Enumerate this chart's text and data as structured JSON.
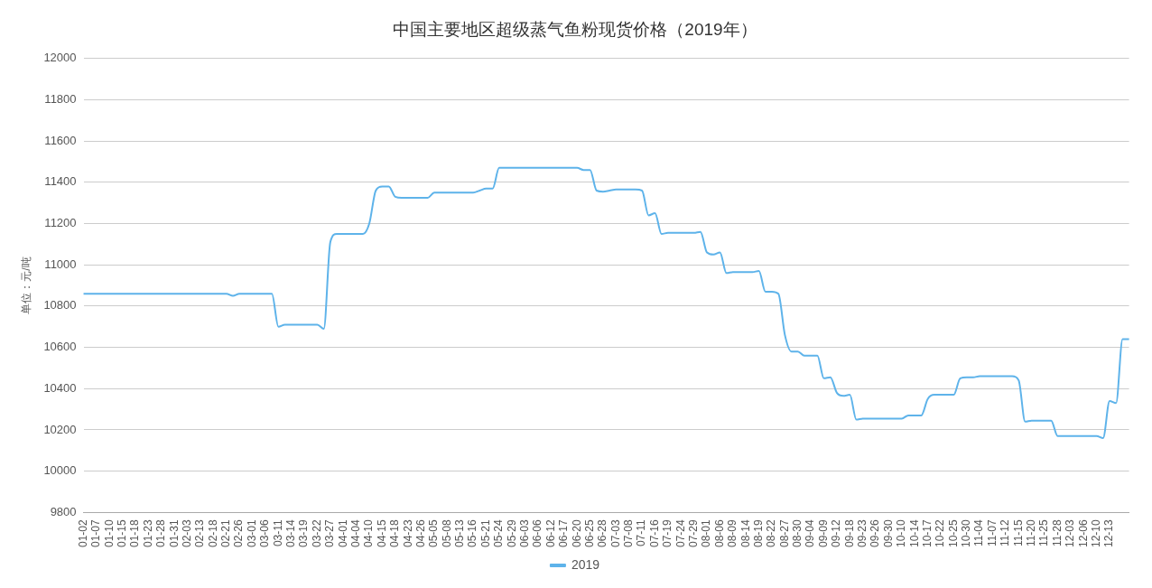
{
  "chart_data": {
    "type": "line",
    "title": "中国主要地区超级蒸气鱼粉现货价格（2019年）",
    "ylabel": "单位：元/吨",
    "categories": [
      "01-02",
      null,
      "01-07",
      null,
      "01-10",
      null,
      "01-15",
      null,
      "01-18",
      null,
      "01-23",
      null,
      "01-28",
      null,
      "01-31",
      null,
      "02-03",
      null,
      "02-13",
      null,
      "02-18",
      null,
      "02-21",
      null,
      "02-26",
      null,
      "03-01",
      null,
      "03-06",
      null,
      "03-11",
      null,
      "03-14",
      null,
      "03-19",
      null,
      "03-22",
      null,
      "03-27",
      null,
      "04-01",
      null,
      "04-04",
      null,
      "04-10",
      null,
      "04-15",
      null,
      "04-18",
      null,
      "04-23",
      null,
      "04-26",
      null,
      "05-05",
      null,
      "05-08",
      null,
      "05-13",
      null,
      "05-16",
      null,
      "05-21",
      null,
      "05-24",
      null,
      "05-29",
      null,
      "06-03",
      null,
      "06-06",
      null,
      "06-12",
      null,
      "06-17",
      null,
      "06-20",
      null,
      "06-25",
      null,
      "06-28",
      null,
      "07-03",
      null,
      "07-08",
      null,
      "07-11",
      null,
      "07-16",
      null,
      "07-19",
      null,
      "07-24",
      null,
      "07-29",
      null,
      "08-01",
      null,
      "08-06",
      null,
      "08-09",
      null,
      "08-14",
      null,
      "08-19",
      null,
      "08-22",
      null,
      "08-27",
      null,
      "08-30",
      null,
      "09-04",
      null,
      "09-09",
      null,
      "09-12",
      null,
      "09-18",
      null,
      "09-23",
      null,
      "09-26",
      null,
      "09-30",
      null,
      "10-10",
      null,
      "10-14",
      null,
      "10-17",
      null,
      "10-22",
      null,
      "10-25",
      null,
      "10-30",
      null,
      "11-04",
      null,
      "11-07",
      null,
      "11-12",
      null,
      "11-15",
      null,
      "11-20",
      null,
      "11-25",
      null,
      "11-28",
      null,
      "12-03",
      null,
      "12-06",
      null,
      "12-10",
      null,
      "12-13",
      null,
      null,
      null
    ],
    "series": [
      {
        "name": "2019",
        "color": "#5eb3ea",
        "values": [
          10860,
          10860,
          10860,
          10860,
          10860,
          10860,
          10860,
          10860,
          10860,
          10860,
          10860,
          10860,
          10860,
          10860,
          10860,
          10860,
          10860,
          10860,
          10860,
          10860,
          10860,
          10860,
          10860,
          10850,
          10860,
          10860,
          10860,
          10860,
          10860,
          10860,
          10700,
          10710,
          10710,
          10710,
          10710,
          10710,
          10710,
          10690,
          11110,
          11150,
          11150,
          11150,
          11150,
          11150,
          11200,
          11360,
          11380,
          11380,
          11330,
          11325,
          11325,
          11325,
          11325,
          11325,
          11350,
          11350,
          11350,
          11350,
          11350,
          11350,
          11350,
          11360,
          11370,
          11370,
          11470,
          11470,
          11470,
          11470,
          11470,
          11470,
          11470,
          11470,
          11470,
          11470,
          11470,
          11470,
          11470,
          11460,
          11460,
          11360,
          11355,
          11360,
          11365,
          11365,
          11365,
          11365,
          11360,
          11240,
          11250,
          11150,
          11155,
          11155,
          11155,
          11155,
          11155,
          11160,
          11060,
          11050,
          11060,
          10960,
          10965,
          10965,
          10965,
          10965,
          10970,
          10870,
          10870,
          10860,
          10660,
          10580,
          10580,
          10560,
          10560,
          10560,
          10450,
          10455,
          10380,
          10365,
          10370,
          10250,
          10255,
          10255,
          10255,
          10255,
          10255,
          10255,
          10255,
          10270,
          10270,
          10270,
          10350,
          10370,
          10370,
          10370,
          10370,
          10450,
          10455,
          10455,
          10460,
          10460,
          10460,
          10460,
          10460,
          10460,
          10440,
          10240,
          10245,
          10245,
          10245,
          10245,
          10170,
          10170,
          10170,
          10170,
          10170,
          10170,
          10170,
          10160,
          10340,
          10330,
          10640,
          10640
        ]
      }
    ],
    "ylim": [
      9800,
      12000
    ],
    "yticks": [
      9800,
      10000,
      10200,
      10400,
      10600,
      10800,
      11000,
      11200,
      11400,
      11600,
      11800,
      12000
    ],
    "grid": "y",
    "legend": "bottom",
    "marker": "none",
    "line_style": "solid"
  }
}
